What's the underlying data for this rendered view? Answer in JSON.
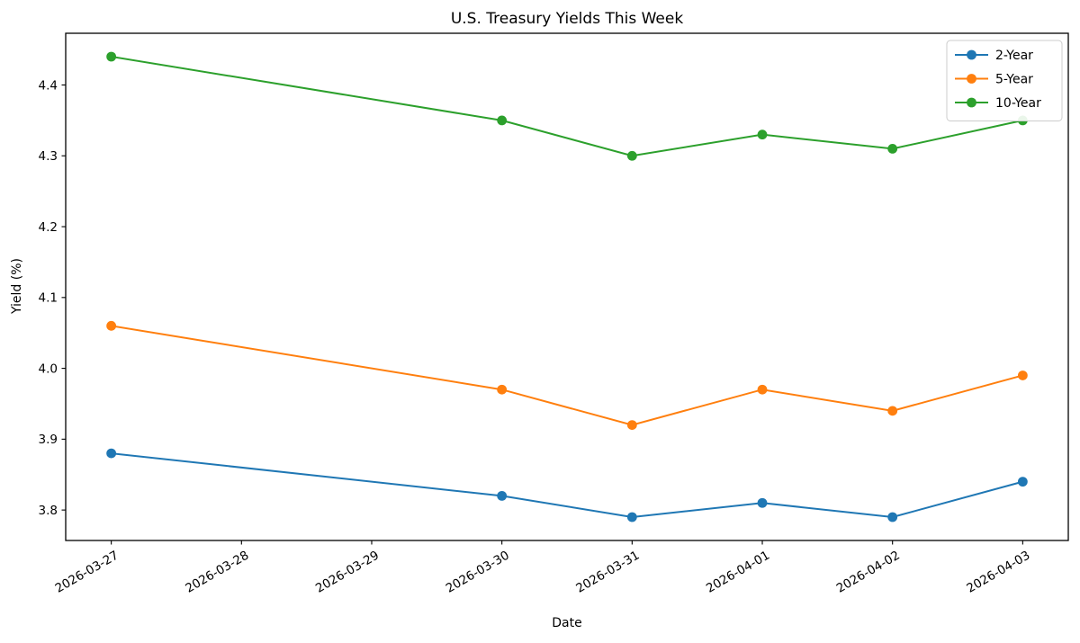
{
  "chart_data": {
    "type": "line",
    "title": "U.S. Treasury Yields This Week",
    "xlabel": "Date",
    "ylabel": "Yield (%)",
    "x_tick_labels": [
      "2026-03-27",
      "2026-03-28",
      "2026-03-29",
      "2026-03-30",
      "2026-03-31",
      "2026-04-01",
      "2026-04-02",
      "2026-04-03"
    ],
    "x_tick_rotation_deg": 30,
    "y_tick_labels": [
      "3.8",
      "3.9",
      "4.0",
      "4.1",
      "4.2",
      "4.3",
      "4.4"
    ],
    "ylim": [
      3.757,
      4.473
    ],
    "x": [
      "2026-03-27",
      "2026-03-30",
      "2026-03-31",
      "2026-04-01",
      "2026-04-02",
      "2026-04-03"
    ],
    "series": [
      {
        "name": "2-Year",
        "color": "#1f77b4",
        "values": [
          3.88,
          3.82,
          3.79,
          3.81,
          3.79,
          3.84
        ]
      },
      {
        "name": "5-Year",
        "color": "#ff7f0e",
        "values": [
          4.06,
          3.97,
          3.92,
          3.97,
          3.94,
          3.99
        ]
      },
      {
        "name": "10-Year",
        "color": "#2ca02c",
        "values": [
          4.44,
          4.35,
          4.3,
          4.33,
          4.31,
          4.35
        ]
      }
    ],
    "legend": {
      "position": "upper right"
    },
    "grid": false,
    "marker": "circle",
    "background": "#ffffff",
    "axis_color": "#000000",
    "legend_border_color": "#cccccc"
  }
}
